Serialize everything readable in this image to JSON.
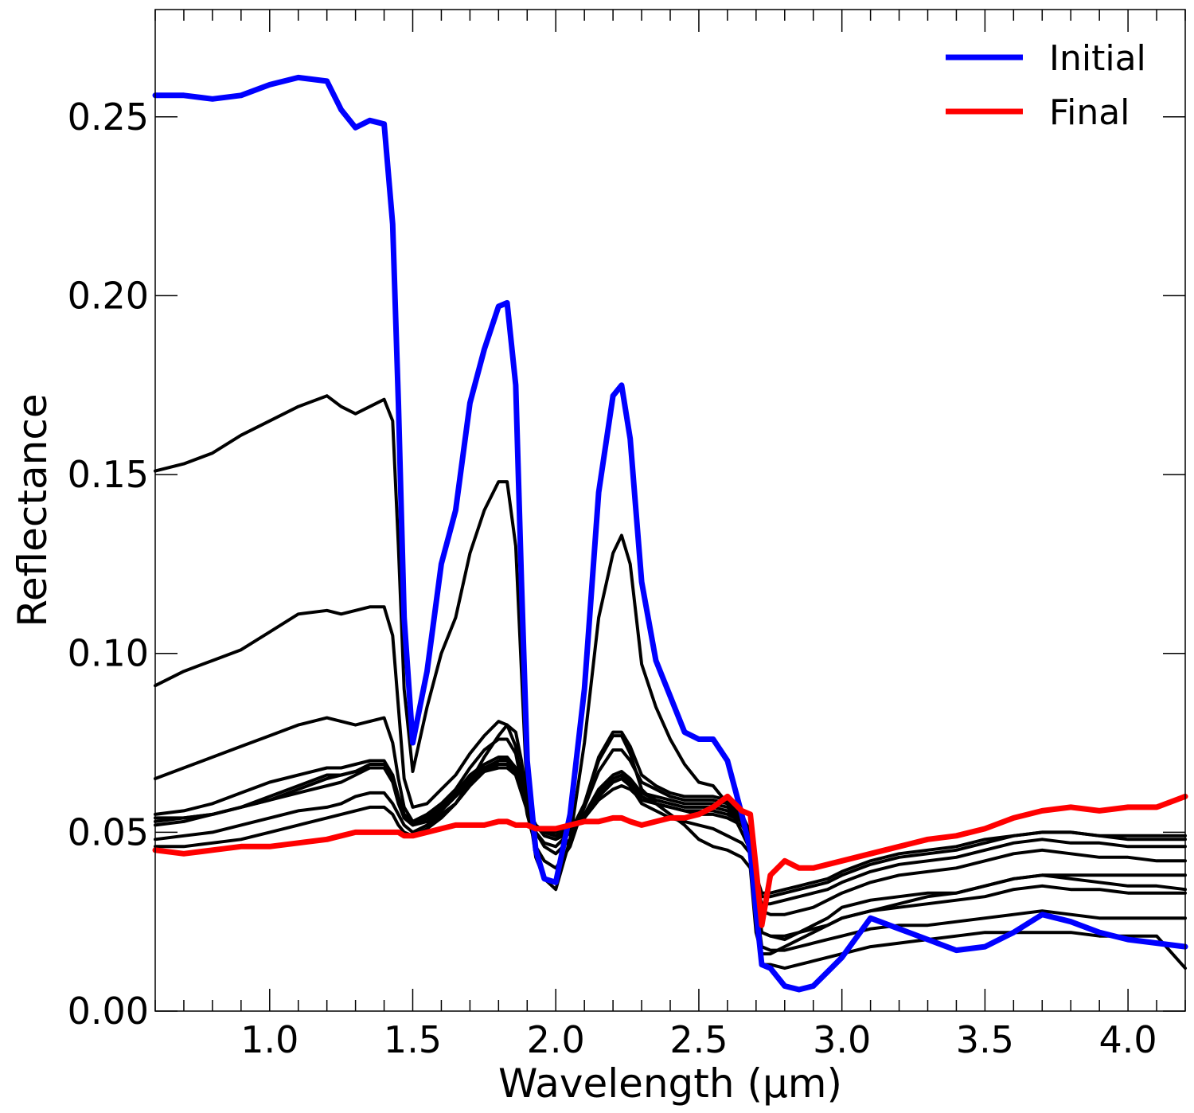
{
  "chart_data": {
    "type": "line",
    "xlabel": "Wavelength (µm)",
    "ylabel": "Reflectance",
    "xlim": [
      0.6,
      4.2
    ],
    "ylim": [
      0,
      0.28
    ],
    "grid": false,
    "legend_position": "top-right",
    "x_ticks": [
      {
        "value": 1.0,
        "label": "1.0"
      },
      {
        "value": 1.5,
        "label": "1.5"
      },
      {
        "value": 2.0,
        "label": "2.0"
      },
      {
        "value": 2.5,
        "label": "2.5"
      },
      {
        "value": 3.0,
        "label": "3.0"
      },
      {
        "value": 3.5,
        "label": "3.5"
      },
      {
        "value": 4.0,
        "label": "4.0"
      }
    ],
    "y_ticks": [
      {
        "value": 0.0,
        "label": "0.00"
      },
      {
        "value": 0.05,
        "label": "0.05"
      },
      {
        "value": 0.1,
        "label": "0.10"
      },
      {
        "value": 0.15,
        "label": "0.15"
      },
      {
        "value": 0.2,
        "label": "0.20"
      },
      {
        "value": 0.25,
        "label": "0.25"
      }
    ],
    "x": [
      0.6,
      0.7,
      0.8,
      0.9,
      1.0,
      1.1,
      1.2,
      1.25,
      1.3,
      1.35,
      1.4,
      1.43,
      1.45,
      1.47,
      1.5,
      1.55,
      1.6,
      1.65,
      1.7,
      1.75,
      1.8,
      1.83,
      1.86,
      1.88,
      1.9,
      1.93,
      1.96,
      2.0,
      2.05,
      2.1,
      2.15,
      2.2,
      2.23,
      2.26,
      2.3,
      2.35,
      2.4,
      2.45,
      2.5,
      2.55,
      2.6,
      2.65,
      2.68,
      2.7,
      2.72,
      2.75,
      2.8,
      2.85,
      2.9,
      2.95,
      3.0,
      3.1,
      3.2,
      3.3,
      3.4,
      3.5,
      3.6,
      3.7,
      3.8,
      3.9,
      4.0,
      4.1,
      4.2
    ],
    "legend": [
      {
        "label": "Initial",
        "color": "#0000ff"
      },
      {
        "label": "Final",
        "color": "#ff0000"
      }
    ],
    "series": [
      {
        "role": "initial",
        "color": "#0000ff",
        "width": 7,
        "values": [
          0.256,
          0.256,
          0.255,
          0.256,
          0.259,
          0.261,
          0.26,
          0.252,
          0.247,
          0.249,
          0.248,
          0.22,
          0.17,
          0.11,
          0.075,
          0.095,
          0.125,
          0.14,
          0.17,
          0.185,
          0.197,
          0.198,
          0.175,
          0.12,
          0.07,
          0.045,
          0.037,
          0.036,
          0.055,
          0.09,
          0.145,
          0.172,
          0.175,
          0.16,
          0.12,
          0.098,
          0.088,
          0.078,
          0.076,
          0.076,
          0.07,
          0.055,
          0.045,
          0.028,
          0.013,
          0.012,
          0.007,
          0.006,
          0.007,
          0.011,
          0.015,
          0.026,
          0.023,
          0.02,
          0.017,
          0.018,
          0.022,
          0.027,
          0.025,
          0.022,
          0.02,
          0.019,
          0.018
        ]
      },
      {
        "role": "intermediate",
        "color": "#000000",
        "width": 4,
        "values": [
          0.151,
          0.153,
          0.156,
          0.161,
          0.165,
          0.169,
          0.172,
          0.169,
          0.167,
          0.169,
          0.171,
          0.165,
          0.13,
          0.09,
          0.067,
          0.085,
          0.1,
          0.11,
          0.128,
          0.14,
          0.148,
          0.148,
          0.13,
          0.095,
          0.06,
          0.043,
          0.037,
          0.034,
          0.048,
          0.075,
          0.11,
          0.128,
          0.133,
          0.125,
          0.097,
          0.085,
          0.076,
          0.069,
          0.064,
          0.063,
          0.058,
          0.05,
          0.045,
          0.032,
          0.022,
          0.021,
          0.02,
          0.022,
          0.024,
          0.026,
          0.029,
          0.031,
          0.032,
          0.033,
          0.033,
          0.035,
          0.037,
          0.038,
          0.037,
          0.036,
          0.035,
          0.035,
          0.034
        ]
      },
      {
        "role": "intermediate",
        "color": "#000000",
        "width": 4,
        "values": [
          0.091,
          0.095,
          0.098,
          0.101,
          0.106,
          0.111,
          0.112,
          0.111,
          0.112,
          0.113,
          0.113,
          0.105,
          0.085,
          0.065,
          0.057,
          0.058,
          0.062,
          0.066,
          0.072,
          0.077,
          0.081,
          0.08,
          0.074,
          0.065,
          0.055,
          0.046,
          0.042,
          0.04,
          0.046,
          0.058,
          0.071,
          0.078,
          0.078,
          0.074,
          0.066,
          0.063,
          0.061,
          0.06,
          0.06,
          0.06,
          0.059,
          0.055,
          0.05,
          0.035,
          0.028,
          0.027,
          0.027,
          0.028,
          0.029,
          0.031,
          0.033,
          0.036,
          0.038,
          0.039,
          0.04,
          0.042,
          0.044,
          0.045,
          0.044,
          0.043,
          0.043,
          0.042,
          0.042
        ]
      },
      {
        "role": "intermediate",
        "color": "#000000",
        "width": 4,
        "values": [
          0.065,
          0.068,
          0.071,
          0.074,
          0.077,
          0.08,
          0.082,
          0.081,
          0.08,
          0.081,
          0.082,
          0.075,
          0.065,
          0.057,
          0.053,
          0.055,
          0.058,
          0.062,
          0.068,
          0.073,
          0.076,
          0.076,
          0.072,
          0.064,
          0.056,
          0.05,
          0.046,
          0.044,
          0.048,
          0.057,
          0.067,
          0.073,
          0.073,
          0.07,
          0.064,
          0.062,
          0.06,
          0.059,
          0.059,
          0.059,
          0.058,
          0.054,
          0.05,
          0.036,
          0.03,
          0.03,
          0.031,
          0.032,
          0.033,
          0.034,
          0.036,
          0.039,
          0.041,
          0.042,
          0.043,
          0.045,
          0.047,
          0.048,
          0.047,
          0.047,
          0.046,
          0.046,
          0.046
        ]
      },
      {
        "role": "intermediate",
        "color": "#000000",
        "width": 4,
        "values": [
          0.055,
          0.056,
          0.058,
          0.061,
          0.064,
          0.066,
          0.068,
          0.068,
          0.069,
          0.07,
          0.07,
          0.066,
          0.06,
          0.055,
          0.053,
          0.055,
          0.058,
          0.061,
          0.064,
          0.067,
          0.069,
          0.069,
          0.066,
          0.061,
          0.056,
          0.052,
          0.05,
          0.049,
          0.051,
          0.055,
          0.061,
          0.065,
          0.066,
          0.064,
          0.061,
          0.06,
          0.059,
          0.058,
          0.058,
          0.058,
          0.057,
          0.054,
          0.05,
          0.038,
          0.033,
          0.033,
          0.034,
          0.035,
          0.036,
          0.037,
          0.039,
          0.042,
          0.044,
          0.045,
          0.046,
          0.048,
          0.049,
          0.05,
          0.05,
          0.049,
          0.049,
          0.049,
          0.049
        ]
      },
      {
        "role": "intermediate",
        "color": "#000000",
        "width": 4,
        "values": [
          0.054,
          0.054,
          0.055,
          0.057,
          0.059,
          0.062,
          0.065,
          0.066,
          0.067,
          0.069,
          0.069,
          0.066,
          0.059,
          0.054,
          0.052,
          0.053,
          0.056,
          0.06,
          0.064,
          0.067,
          0.068,
          0.068,
          0.066,
          0.061,
          0.056,
          0.052,
          0.049,
          0.048,
          0.05,
          0.054,
          0.059,
          0.062,
          0.063,
          0.062,
          0.059,
          0.058,
          0.057,
          0.056,
          0.056,
          0.056,
          0.055,
          0.053,
          0.049,
          0.037,
          0.032,
          0.032,
          0.033,
          0.034,
          0.035,
          0.036,
          0.038,
          0.041,
          0.043,
          0.044,
          0.045,
          0.047,
          0.049,
          0.05,
          0.05,
          0.049,
          0.048,
          0.048,
          0.048
        ]
      },
      {
        "role": "intermediate",
        "color": "#000000",
        "width": 4,
        "values": [
          0.053,
          0.054,
          0.055,
          0.057,
          0.059,
          0.061,
          0.063,
          0.064,
          0.066,
          0.068,
          0.068,
          0.064,
          0.058,
          0.054,
          0.052,
          0.054,
          0.057,
          0.061,
          0.066,
          0.069,
          0.071,
          0.071,
          0.068,
          0.062,
          0.057,
          0.052,
          0.05,
          0.049,
          0.051,
          0.055,
          0.062,
          0.066,
          0.067,
          0.065,
          0.061,
          0.059,
          0.058,
          0.057,
          0.057,
          0.057,
          0.056,
          0.053,
          0.049,
          0.034,
          0.022,
          0.021,
          0.021,
          0.022,
          0.023,
          0.024,
          0.026,
          0.028,
          0.029,
          0.03,
          0.031,
          0.032,
          0.034,
          0.035,
          0.034,
          0.034,
          0.033,
          0.033,
          0.033
        ]
      },
      {
        "role": "intermediate",
        "color": "#000000",
        "width": 4,
        "values": [
          0.052,
          0.053,
          0.055,
          0.057,
          0.06,
          0.063,
          0.066,
          0.066,
          0.067,
          0.068,
          0.068,
          0.065,
          0.059,
          0.055,
          0.053,
          0.054,
          0.057,
          0.061,
          0.065,
          0.068,
          0.07,
          0.07,
          0.067,
          0.062,
          0.057,
          0.052,
          0.05,
          0.05,
          0.052,
          0.055,
          0.06,
          0.064,
          0.065,
          0.063,
          0.06,
          0.058,
          0.057,
          0.056,
          0.055,
          0.055,
          0.054,
          0.052,
          0.048,
          0.03,
          0.018,
          0.017,
          0.017,
          0.018,
          0.019,
          0.02,
          0.021,
          0.023,
          0.024,
          0.024,
          0.025,
          0.026,
          0.027,
          0.028,
          0.027,
          0.026,
          0.026,
          0.026,
          0.026
        ]
      },
      {
        "role": "intermediate",
        "color": "#000000",
        "width": 4,
        "values": [
          0.048,
          0.049,
          0.05,
          0.052,
          0.054,
          0.056,
          0.057,
          0.058,
          0.06,
          0.061,
          0.061,
          0.058,
          0.055,
          0.052,
          0.05,
          0.052,
          0.055,
          0.058,
          0.063,
          0.067,
          0.07,
          0.071,
          0.068,
          0.063,
          0.057,
          0.052,
          0.05,
          0.049,
          0.05,
          0.054,
          0.06,
          0.064,
          0.065,
          0.063,
          0.058,
          0.056,
          0.054,
          0.053,
          0.052,
          0.051,
          0.049,
          0.047,
          0.044,
          0.025,
          0.013,
          0.013,
          0.012,
          0.013,
          0.014,
          0.015,
          0.016,
          0.018,
          0.019,
          0.02,
          0.021,
          0.022,
          0.022,
          0.022,
          0.022,
          0.021,
          0.021,
          0.021,
          0.012
        ]
      },
      {
        "role": "intermediate",
        "color": "#000000",
        "width": 4,
        "values": [
          0.046,
          0.046,
          0.047,
          0.048,
          0.05,
          0.052,
          0.054,
          0.055,
          0.056,
          0.057,
          0.057,
          0.055,
          0.052,
          0.05,
          0.049,
          0.051,
          0.054,
          0.058,
          0.064,
          0.071,
          0.077,
          0.08,
          0.078,
          0.07,
          0.058,
          0.05,
          0.047,
          0.046,
          0.05,
          0.058,
          0.07,
          0.077,
          0.077,
          0.072,
          0.062,
          0.058,
          0.055,
          0.052,
          0.048,
          0.046,
          0.045,
          0.043,
          0.04,
          0.022,
          0.016,
          0.016,
          0.018,
          0.02,
          0.022,
          0.024,
          0.026,
          0.028,
          0.03,
          0.032,
          0.033,
          0.035,
          0.037,
          0.038,
          0.038,
          0.038,
          0.038,
          0.038,
          0.038
        ]
      },
      {
        "role": "final",
        "color": "#ff0000",
        "width": 7,
        "values": [
          0.045,
          0.044,
          0.045,
          0.046,
          0.046,
          0.047,
          0.048,
          0.049,
          0.05,
          0.05,
          0.05,
          0.05,
          0.05,
          0.049,
          0.049,
          0.05,
          0.051,
          0.052,
          0.052,
          0.052,
          0.053,
          0.053,
          0.052,
          0.052,
          0.052,
          0.051,
          0.051,
          0.051,
          0.052,
          0.053,
          0.053,
          0.054,
          0.054,
          0.053,
          0.052,
          0.053,
          0.054,
          0.054,
          0.055,
          0.057,
          0.06,
          0.056,
          0.055,
          0.04,
          0.024,
          0.038,
          0.042,
          0.04,
          0.04,
          0.041,
          0.042,
          0.044,
          0.046,
          0.048,
          0.049,
          0.051,
          0.054,
          0.056,
          0.057,
          0.056,
          0.057,
          0.057,
          0.06
        ]
      }
    ]
  }
}
